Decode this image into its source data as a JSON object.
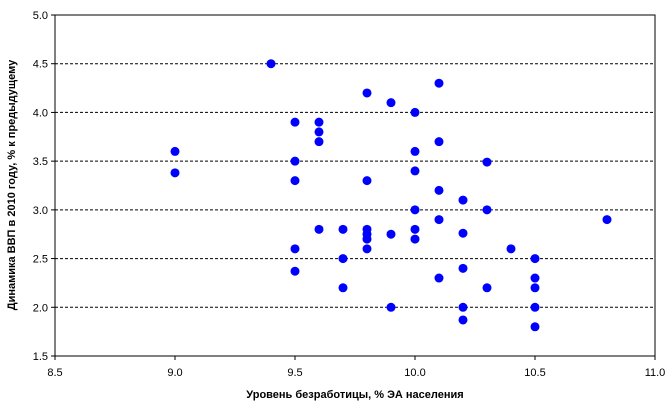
{
  "chart_data": {
    "type": "scatter",
    "title": "",
    "xlabel": "Уровень безработицы, % ЭА населения",
    "ylabel": "Динамика ВВП в 2010 году, % к предыдущему",
    "xlim": [
      8.5,
      11.0
    ],
    "ylim": [
      1.5,
      5.0
    ],
    "x_ticks": [
      "8.5",
      "9.0",
      "9.5",
      "10.0",
      "10.5",
      "11.0"
    ],
    "y_ticks": [
      "1.5",
      "2.0",
      "2.5",
      "3.0",
      "3.5",
      "4.0",
      "4.5",
      "5.0"
    ],
    "grid": "horizontal dashed",
    "marker_color": "#0000ff",
    "series": [
      {
        "points": [
          [
            9.0,
            3.6
          ],
          [
            9.0,
            3.38
          ],
          [
            9.4,
            4.5
          ],
          [
            9.5,
            3.9
          ],
          [
            9.5,
            3.5
          ],
          [
            9.5,
            3.3
          ],
          [
            9.5,
            2.6
          ],
          [
            9.5,
            2.37
          ],
          [
            9.6,
            3.9
          ],
          [
            9.6,
            3.8
          ],
          [
            9.6,
            3.7
          ],
          [
            9.6,
            2.8
          ],
          [
            9.7,
            2.8
          ],
          [
            9.7,
            2.5
          ],
          [
            9.7,
            2.2
          ],
          [
            9.8,
            4.2
          ],
          [
            9.8,
            3.3
          ],
          [
            9.8,
            2.8
          ],
          [
            9.8,
            2.75
          ],
          [
            9.8,
            2.7
          ],
          [
            9.8,
            2.6
          ],
          [
            9.9,
            4.1
          ],
          [
            9.9,
            2.75
          ],
          [
            9.9,
            2.0
          ],
          [
            10.0,
            4.0
          ],
          [
            10.0,
            3.6
          ],
          [
            10.0,
            3.4
          ],
          [
            10.0,
            3.0
          ],
          [
            10.0,
            2.8
          ],
          [
            10.0,
            2.7
          ],
          [
            10.1,
            4.3
          ],
          [
            10.1,
            3.7
          ],
          [
            10.1,
            3.2
          ],
          [
            10.1,
            2.9
          ],
          [
            10.1,
            2.3
          ],
          [
            10.2,
            3.1
          ],
          [
            10.2,
            2.76
          ],
          [
            10.2,
            2.4
          ],
          [
            10.2,
            2.0
          ],
          [
            10.2,
            1.87
          ],
          [
            10.3,
            3.49
          ],
          [
            10.3,
            3.0
          ],
          [
            10.3,
            2.2
          ],
          [
            10.4,
            2.6
          ],
          [
            10.5,
            2.5
          ],
          [
            10.5,
            2.3
          ],
          [
            10.5,
            2.2
          ],
          [
            10.5,
            2.0
          ],
          [
            10.5,
            1.8
          ],
          [
            10.8,
            2.9
          ]
        ]
      }
    ]
  }
}
